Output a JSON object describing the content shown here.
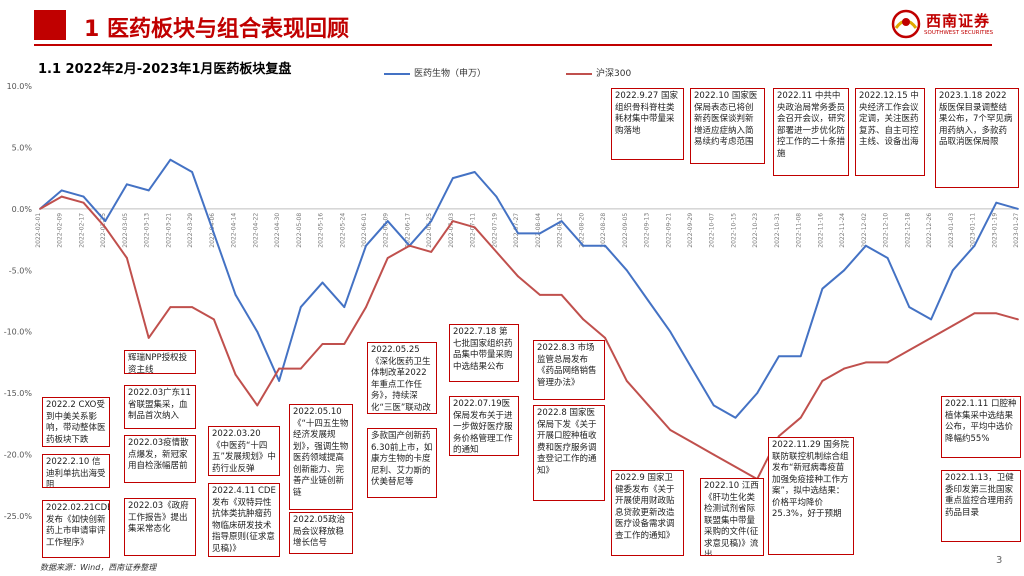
{
  "header": {
    "title": "1 医药板块与组合表现回顾",
    "logo_cn": "西南证券",
    "logo_en": "SOUTHWEST SECURITIES",
    "brand_color": "#c00000"
  },
  "section_title": "1.1 2022年2月-2023年1月医药板块复盘",
  "source": "数据来源：Wind，西南证券整理",
  "page_number": "3",
  "annotations": [
    "2022.2 CXO受到中美关系影响，带动整体医药板块下跌",
    "2022.2.10 信迪利单抗出海受阻",
    "2022.02.21CDE发布《如快创新药上市申请审评工作程序》",
    "辉瑞NPP授权投资主线",
    "2022.03广东11省联盟集采，血制品首次纳入",
    "2022.03疫情散点爆发，新冠家用自检涨幅居前",
    "2022.03《政府工作报告》提出集采常态化",
    "2022.03.20《中医药“十四五”发展规划》中药行业反弹",
    "2022.4.11 CDE发布《双特异性抗体类抗肿瘤药物临床研发技术指导原则(征求意见稿)》",
    "2022.05.10《“十四五生物经济发展规划》，强调生物医药领域提高创新能力、完善产业链创新链",
    "2022.05政治局会议释放稳增长信号",
    "2022.05.25《深化医药卫生体制改革2022年重点工作任务》，持续深化“三医”联动改革",
    "多款国产创新药6.30前上市，如康方生物的卡度尼利、艾力斯的伏美替尼等",
    "2022.7.18 第七批国家组织药品集中带量采购中选结果公布",
    "2022.07.19医保局发布关于进一步做好医疗服务价格管理工作的通知",
    "2022.8.3 市场监管总局发布《药品网络销售管理办法》",
    "2022.8 国家医保局下发《关于开展口腔种植收费和医疗服务调查登记工作的通知》",
    "2022.9.27 国家组织骨科脊柱类耗材集中带量采购落地",
    "2022.9 国家卫健委发布《关于开展使用财政贴息贷款更新改造医疗设备需求调查工作的通知》",
    "2022.10 国家医保局表态已将创新药医保谈判新增适应症纳入简易续约考虑范围",
    "2022.10 江西《肝功生化类检测试剂省际联盟集中带量采购的文件(征求意见稿)》流出",
    "2022.11 中共中央政治局常务委员会召开会议，研究部署进一步优化防控工作的二十条措施",
    "2022.11.29 国务院联防联控机制综合组发布“新冠病毒疫苗加强免疫接种工作方案”，拟中选结果：价格平均降价25.3%，好于预期",
    "2022.12.15 中央经济工作会议定调，关注医药复苏、自主可控主线、设备出海",
    "2023.1.18 2022版医保目录调整结果公布，7个罕见病用药纳入，多款药品取消医保局限",
    "2022.1.11 口腔种植体集采中选结果公布，平均中选价降幅约55%",
    "2022.1.13，卫健委印发第三批国家重点监控合理用药药品目录"
  ],
  "chart_data": {
    "type": "line",
    "title": "",
    "xlabel": "",
    "ylabel": "",
    "ylim": [
      -25,
      10
    ],
    "yticks": [
      "10.0%",
      "5.0%",
      "0.0%",
      "-5.0%",
      "-10.0%",
      "-15.0%",
      "-20.0%",
      "-25.0%"
    ],
    "ytick_values": [
      10,
      5,
      0,
      -5,
      -10,
      -15,
      -20,
      -25
    ],
    "grid": false,
    "legend_position": "top",
    "x": [
      "2022-02-01",
      "2022-02-09",
      "2022-02-17",
      "2022-02-25",
      "2022-03-05",
      "2022-03-13",
      "2022-03-21",
      "2022-03-29",
      "2022-04-06",
      "2022-04-14",
      "2022-04-22",
      "2022-04-30",
      "2022-05-08",
      "2022-05-16",
      "2022-05-24",
      "2022-06-01",
      "2022-06-09",
      "2022-06-17",
      "2022-06-25",
      "2022-07-03",
      "2022-07-11",
      "2022-07-19",
      "2022-07-27",
      "2022-08-04",
      "2022-08-12",
      "2022-08-20",
      "2022-08-28",
      "2022-09-05",
      "2022-09-13",
      "2022-09-21",
      "2022-09-29",
      "2022-10-07",
      "2022-10-15",
      "2022-10-23",
      "2022-10-31",
      "2022-11-08",
      "2022-11-16",
      "2022-11-24",
      "2022-12-02",
      "2022-12-10",
      "2022-12-18",
      "2022-12-26",
      "2023-01-03",
      "2023-01-11",
      "2023-01-19",
      "2023-01-27"
    ],
    "series": [
      {
        "name": "医药生物（申万）",
        "color": "#4472c4",
        "values": [
          0.0,
          1.5,
          1.0,
          -1.0,
          2.0,
          1.5,
          4.0,
          3.0,
          -2.0,
          -7.0,
          -10.0,
          -14.0,
          -8.0,
          -6.0,
          -8.0,
          -3.0,
          -1.0,
          -3.0,
          -1.0,
          2.5,
          3.0,
          1.0,
          -2.0,
          -2.0,
          -1.0,
          -3.0,
          -3.0,
          -5.0,
          -7.5,
          -10.0,
          -13.0,
          -16.0,
          -17.0,
          -15.0,
          -12.0,
          -12.0,
          -6.5,
          -5.0,
          -3.0,
          -4.0,
          -8.0,
          -9.0,
          -5.0,
          -3.0,
          0.5,
          0.0
        ]
      },
      {
        "name": "沪深300",
        "color": "#c0504d",
        "values": [
          0.0,
          1.0,
          0.5,
          -1.5,
          -4.0,
          -10.5,
          -8.0,
          -8.0,
          -9.0,
          -13.5,
          -16.0,
          -13.0,
          -13.0,
          -11.0,
          -11.0,
          -8.0,
          -4.0,
          -3.0,
          -3.5,
          -1.0,
          -1.5,
          -3.5,
          -5.5,
          -7.0,
          -7.0,
          -9.0,
          -10.5,
          -14.0,
          -16.0,
          -18.0,
          -19.0,
          -20.0,
          -21.0,
          -22.0,
          -18.5,
          -17.0,
          -14.0,
          -13.0,
          -12.5,
          -12.5,
          -11.5,
          -10.5,
          -9.5,
          -8.5,
          -8.5,
          -9.0
        ]
      }
    ]
  }
}
